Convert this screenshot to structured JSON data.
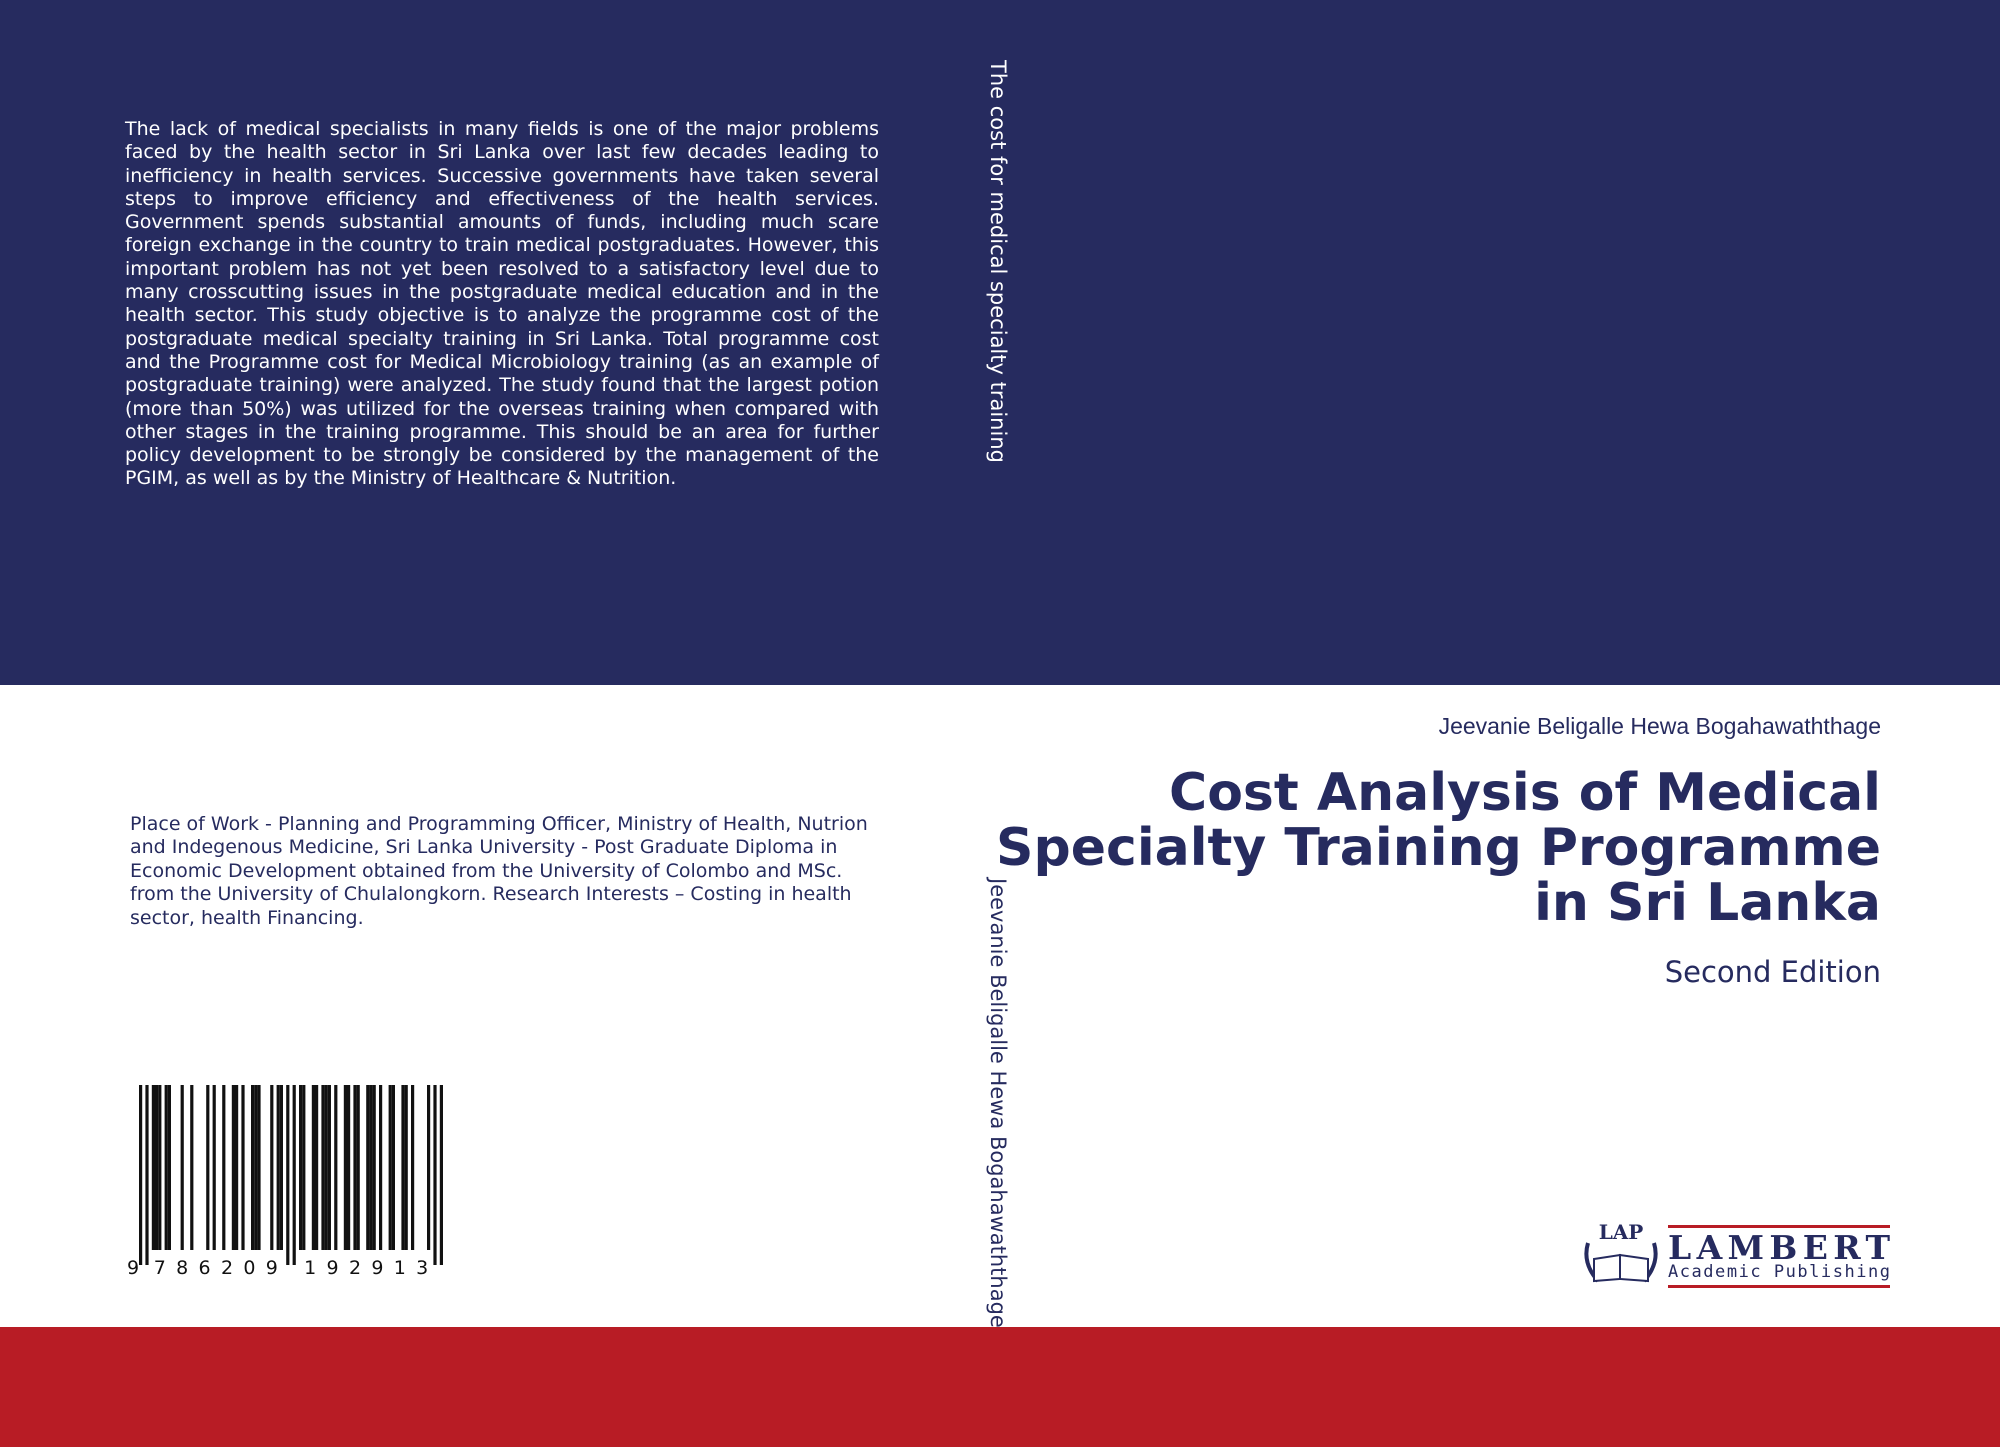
{
  "back_cover": {
    "blurb": "The lack of medical specialists in many fields is one of the major problems faced by the health sector in Sri Lanka over last few decades leading to inefficiency in health services. Successive governments have taken several steps to improve efficiency and effectiveness of the health services. Government spends substantial amounts of funds, including much scare foreign exchange in the country to train medical postgraduates. However, this important problem has not yet been resolved to a satisfactory level due to many crosscutting issues in the postgraduate medical education and in the health sector. This study objective is to analyze the programme cost of the postgraduate medical specialty training in Sri Lanka. Total programme cost and the Programme cost for Medical Microbiology training (as an example of postgraduate training) were analyzed. The study found that the largest potion (more than 50%) was utilized for the overseas training when compared with other stages in the training programme. This should be an area for further policy development to be strongly be considered by the management of the PGIM, as well as by the Ministry of Healthcare & Nutrition.",
    "author_bio": "Place of Work - Planning and Programming Officer, Ministry of Health, Nutrion and Indegenous Medicine, Sri Lanka University - Post Graduate Diploma in Economic Development obtained from the University of Colombo and MSc. from the University of Chulalongkorn. Research Interests – Costing in health sector, health Financing.",
    "isbn_digits": "9786209192913"
  },
  "spine": {
    "title": "The cost for medical specialty training",
    "author": "Jeevanie Beligalle Hewa Bogahawaththage"
  },
  "front_cover": {
    "author": "Jeevanie Beligalle Hewa Bogahawaththage",
    "title": "Cost Analysis of Medical Specialty Training Programme in Sri Lanka",
    "edition": "Second Edition"
  },
  "publisher": {
    "logo_mark": "LAP",
    "name": "LAMBERT",
    "subtitle": "Academic Publishing"
  },
  "colors": {
    "navy": "#262b5f",
    "red": "#b81c25",
    "white": "#ffffff"
  }
}
